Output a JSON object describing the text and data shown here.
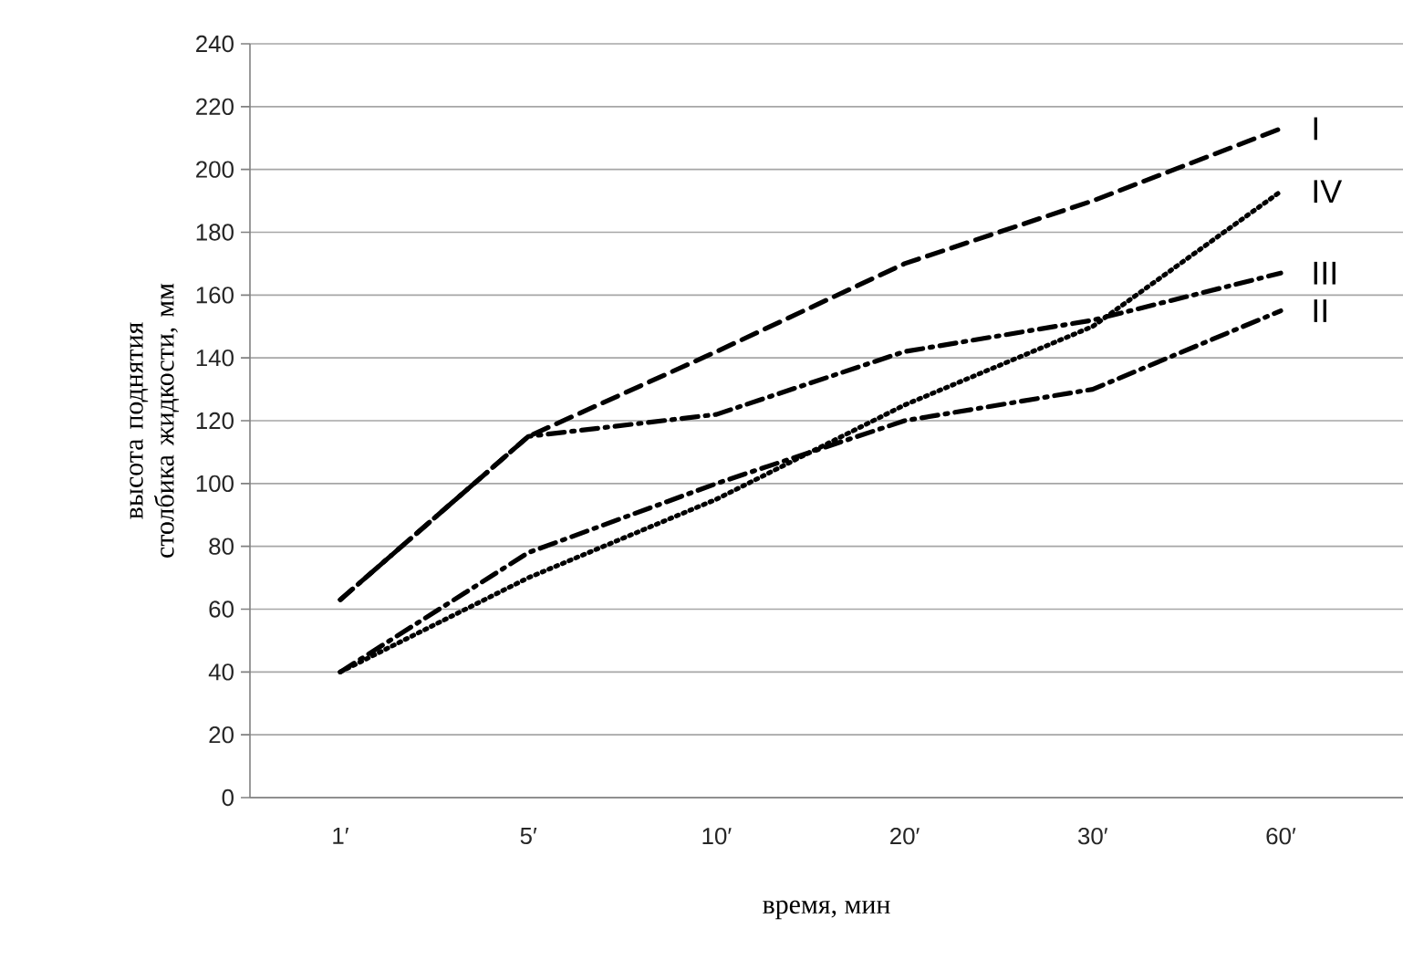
{
  "chart_data": {
    "type": "line",
    "xlabel": "время, мин",
    "ylabel": "высота поднятия столбика жидкости, мм",
    "categories": [
      "1′",
      "5′",
      "10′",
      "20′",
      "30′",
      "60′"
    ],
    "ylim": [
      0,
      240
    ],
    "yticks": [
      0,
      20,
      40,
      60,
      80,
      100,
      120,
      140,
      160,
      180,
      200,
      220,
      240
    ],
    "grid": "y",
    "series": [
      {
        "name": "I",
        "color": "#000000",
        "line_style": "dashed",
        "values": [
          63,
          115,
          142,
          170,
          190,
          213
        ]
      },
      {
        "name": "II",
        "color": "#000000",
        "line_style": "dashdot",
        "values": [
          40,
          78,
          100,
          120,
          130,
          155
        ]
      },
      {
        "name": "III",
        "color": "#000000",
        "line_style": "dashdot",
        "values": [
          63,
          115,
          122,
          142,
          152,
          167
        ]
      },
      {
        "name": "IV",
        "color": "#000000",
        "line_style": "dotted",
        "values": [
          40,
          70,
          95,
          125,
          150,
          193
        ]
      }
    ]
  }
}
